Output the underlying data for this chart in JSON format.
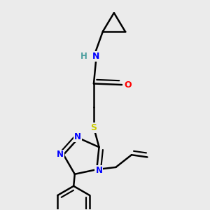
{
  "background_color": "#ebebeb",
  "atom_colors": {
    "N": "#0000ff",
    "O": "#ff0000",
    "S": "#cccc00",
    "C": "#000000",
    "H": "#4a9e9e"
  },
  "bond_color": "#000000",
  "bond_width": 1.8,
  "figsize": [
    3.0,
    3.0
  ],
  "dpi": 100
}
